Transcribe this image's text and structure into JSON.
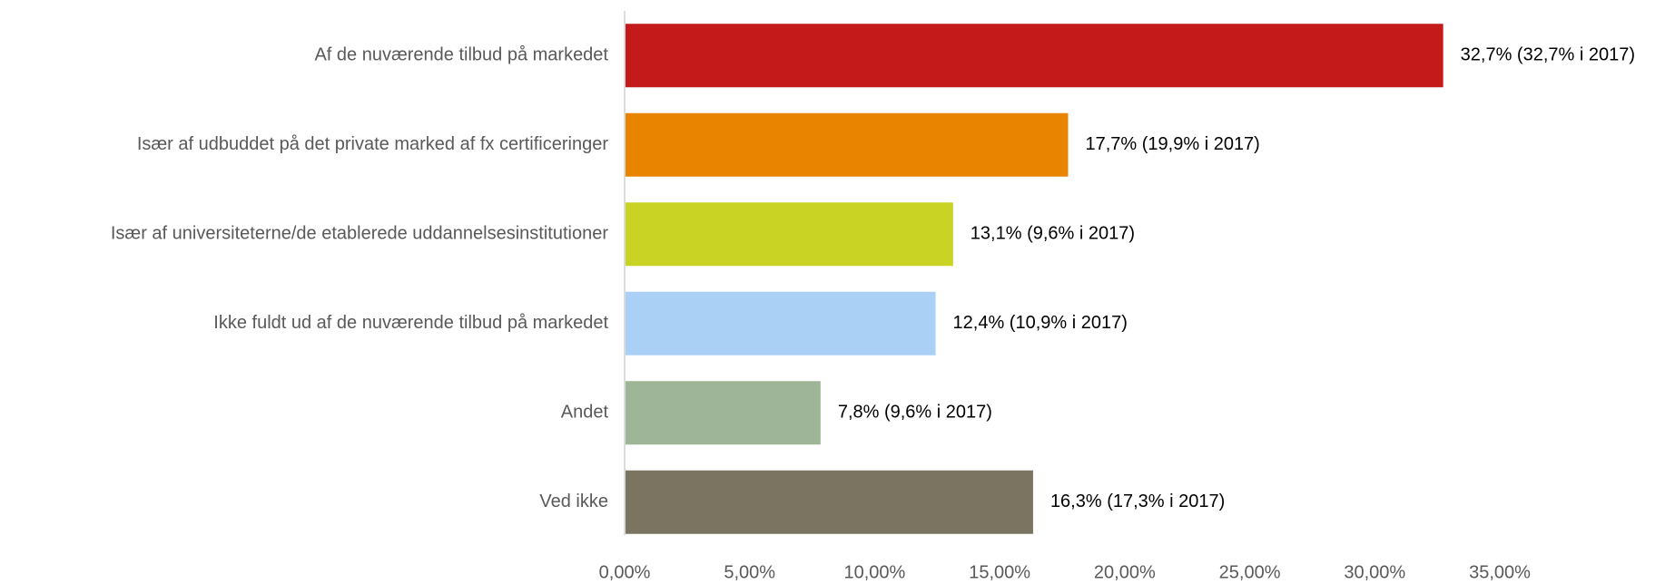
{
  "chart_data": {
    "type": "bar",
    "orientation": "horizontal",
    "categories": [
      "Af de nuværende tilbud på markedet",
      "Især af udbuddet på det private marked af fx certificeringer",
      "Især af universiteterne/de etablerede uddannelsesinstitutioner",
      "Ikke fuldt ud af de nuværende tilbud på markedet",
      "Andet",
      "Ved ikke"
    ],
    "values": [
      32.7,
      17.7,
      13.1,
      12.4,
      7.8,
      16.3
    ],
    "value_labels": [
      "32,7% (32,7% i 2017)",
      "17,7% (19,9% i 2017)",
      "13,1% (9,6% i 2017)",
      "12,4% (10,9% i 2017)",
      "7,8% (9,6% i 2017)",
      "16,3% (17,3% i 2017)"
    ],
    "colors": [
      "#c41a1a",
      "#e88400",
      "#c8d324",
      "#aad0f5",
      "#9fb597",
      "#7b7461"
    ],
    "xlim": [
      0,
      35
    ],
    "xticks": [
      {
        "value": 0,
        "label": "0,00%"
      },
      {
        "value": 5,
        "label": "5,00%"
      },
      {
        "value": 10,
        "label": "10,00%"
      },
      {
        "value": 15,
        "label": "15,00%"
      },
      {
        "value": 20,
        "label": "20,00%"
      },
      {
        "value": 25,
        "label": "25,00%"
      },
      {
        "value": 30,
        "label": "30,00%"
      },
      {
        "value": 35,
        "label": "35,00%"
      }
    ],
    "grid": false
  }
}
